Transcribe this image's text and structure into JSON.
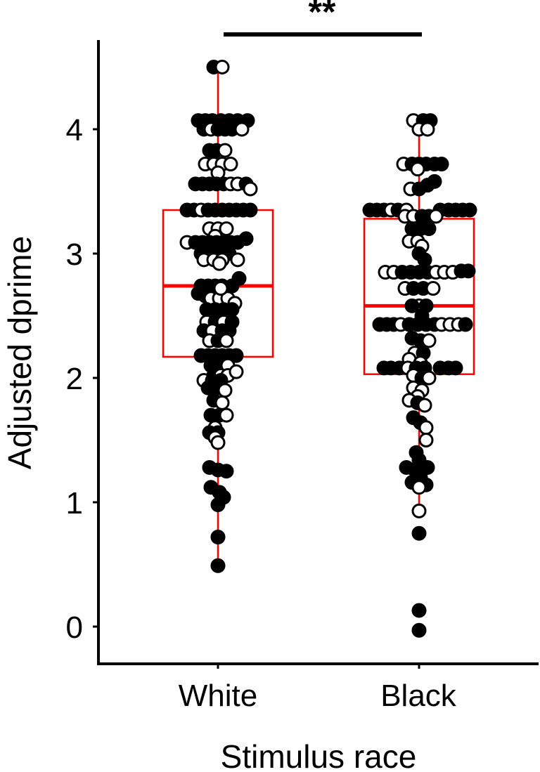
{
  "chart_data": {
    "type": "box",
    "subtype": "boxplot_with_dotplot",
    "title": "",
    "xlabel": "Stimulus race",
    "ylabel": "Adjusted dprime",
    "categories": [
      "White",
      "Black"
    ],
    "yticks": [
      0,
      1,
      2,
      3,
      4
    ],
    "ylim": [
      -0.3,
      4.75
    ],
    "grid": false,
    "legend": null,
    "box_color": "#ff0000",
    "point_fill_colors": {
      "filled": "#000000",
      "open": "#ffffff"
    },
    "significance": {
      "label": "**",
      "between": [
        "White",
        "Black"
      ]
    },
    "boxes": [
      {
        "category": "White",
        "q1": 2.17,
        "median": 2.74,
        "q3": 3.35,
        "whisker_low": 0.5,
        "whisker_high": 4.5
      },
      {
        "category": "Black",
        "q1": 2.03,
        "median": 2.58,
        "q3": 3.28,
        "whisker_low": 0.93,
        "whisker_high": 4.07,
        "outliers": [
          0.75,
          0.13,
          -0.03
        ]
      }
    ],
    "series": [
      {
        "name": "White",
        "points": [
          [
            4.5,
            -6,
            1
          ],
          [
            4.5,
            6,
            0
          ],
          [
            4.07,
            -28,
            1
          ],
          [
            4.07,
            -18,
            1
          ],
          [
            4.07,
            -8,
            1
          ],
          [
            4.07,
            4,
            1
          ],
          [
            4.07,
            16,
            1
          ],
          [
            4.07,
            28,
            1
          ],
          [
            4.07,
            42,
            1
          ],
          [
            4.0,
            -20,
            1
          ],
          [
            4.0,
            -10,
            0
          ],
          [
            4.0,
            0,
            1
          ],
          [
            4.0,
            10,
            1
          ],
          [
            4.0,
            20,
            1
          ],
          [
            4.0,
            34,
            0
          ],
          [
            3.83,
            -12,
            1
          ],
          [
            3.83,
            -2,
            1
          ],
          [
            3.83,
            10,
            0
          ],
          [
            3.72,
            -18,
            0
          ],
          [
            3.72,
            -6,
            0
          ],
          [
            3.72,
            6,
            0
          ],
          [
            3.72,
            18,
            0
          ],
          [
            3.65,
            0,
            0
          ],
          [
            3.56,
            -32,
            1
          ],
          [
            3.56,
            -22,
            1
          ],
          [
            3.56,
            -12,
            1
          ],
          [
            3.56,
            -2,
            1
          ],
          [
            3.56,
            8,
            1
          ],
          [
            3.56,
            18,
            0
          ],
          [
            3.56,
            28,
            0
          ],
          [
            3.56,
            40,
            1
          ],
          [
            3.52,
            46,
            0
          ],
          [
            3.35,
            -44,
            1
          ],
          [
            3.35,
            -34,
            1
          ],
          [
            3.35,
            -24,
            0
          ],
          [
            3.35,
            -14,
            1
          ],
          [
            3.35,
            -4,
            1
          ],
          [
            3.35,
            6,
            1
          ],
          [
            3.35,
            16,
            1
          ],
          [
            3.35,
            26,
            1
          ],
          [
            3.35,
            36,
            1
          ],
          [
            3.35,
            46,
            1
          ],
          [
            3.2,
            -12,
            0
          ],
          [
            3.2,
            0,
            0
          ],
          [
            3.2,
            12,
            0
          ],
          [
            3.14,
            -4,
            0
          ],
          [
            3.09,
            -44,
            0
          ],
          [
            3.09,
            -32,
            1
          ],
          [
            3.09,
            -22,
            1
          ],
          [
            3.09,
            -12,
            1
          ],
          [
            3.09,
            -2,
            1
          ],
          [
            3.09,
            8,
            1
          ],
          [
            3.09,
            18,
            1
          ],
          [
            3.09,
            28,
            1
          ],
          [
            3.12,
            40,
            1
          ],
          [
            3.0,
            -24,
            1
          ],
          [
            3.0,
            -14,
            1
          ],
          [
            3.0,
            -4,
            1
          ],
          [
            3.0,
            6,
            1
          ],
          [
            3.0,
            16,
            1
          ],
          [
            2.95,
            -20,
            0
          ],
          [
            2.95,
            -6,
            0
          ],
          [
            2.95,
            6,
            0
          ],
          [
            2.95,
            28,
            0
          ],
          [
            2.92,
            2,
            0
          ],
          [
            2.74,
            -24,
            1
          ],
          [
            2.74,
            -14,
            1
          ],
          [
            2.74,
            -4,
            1
          ],
          [
            2.74,
            6,
            1
          ],
          [
            2.74,
            20,
            1
          ],
          [
            2.8,
            30,
            1
          ],
          [
            2.68,
            -28,
            1
          ],
          [
            2.66,
            -18,
            1
          ],
          [
            2.64,
            -10,
            0
          ],
          [
            2.64,
            2,
            0
          ],
          [
            2.64,
            14,
            0
          ],
          [
            2.6,
            24,
            0
          ],
          [
            2.72,
            4,
            0
          ],
          [
            2.55,
            -16,
            1
          ],
          [
            2.55,
            -4,
            1
          ],
          [
            2.55,
            8,
            1
          ],
          [
            2.55,
            20,
            1
          ],
          [
            2.45,
            -16,
            0
          ],
          [
            2.45,
            -4,
            1
          ],
          [
            2.45,
            8,
            0
          ],
          [
            2.45,
            20,
            1
          ],
          [
            2.38,
            -20,
            1
          ],
          [
            2.38,
            -8,
            0
          ],
          [
            2.38,
            6,
            1
          ],
          [
            2.38,
            16,
            1
          ],
          [
            2.3,
            -12,
            0
          ],
          [
            2.3,
            0,
            1
          ],
          [
            2.3,
            12,
            0
          ],
          [
            2.18,
            -24,
            1
          ],
          [
            2.18,
            -14,
            1
          ],
          [
            2.18,
            -4,
            1
          ],
          [
            2.18,
            6,
            1
          ],
          [
            2.18,
            16,
            1
          ],
          [
            2.18,
            26,
            1
          ],
          [
            2.1,
            -10,
            1
          ],
          [
            2.1,
            2,
            1
          ],
          [
            2.1,
            14,
            0
          ],
          [
            2.02,
            -6,
            1
          ],
          [
            2.02,
            4,
            0
          ],
          [
            2.02,
            14,
            0
          ],
          [
            2.05,
            26,
            0
          ],
          [
            1.98,
            -20,
            0
          ],
          [
            1.98,
            -8,
            1
          ],
          [
            1.98,
            4,
            1
          ],
          [
            1.92,
            -14,
            1
          ],
          [
            1.92,
            -2,
            1
          ],
          [
            1.9,
            10,
            0
          ],
          [
            1.82,
            -6,
            1
          ],
          [
            1.8,
            6,
            0
          ],
          [
            1.7,
            -10,
            1
          ],
          [
            1.7,
            2,
            1
          ],
          [
            1.7,
            12,
            0
          ],
          [
            1.6,
            -4,
            0
          ],
          [
            1.56,
            -12,
            1
          ],
          [
            1.56,
            0,
            1
          ],
          [
            1.52,
            -4,
            0
          ],
          [
            1.48,
            0,
            0
          ],
          [
            1.28,
            -12,
            1
          ],
          [
            1.26,
            0,
            1
          ],
          [
            1.25,
            12,
            1
          ],
          [
            1.12,
            -10,
            1
          ],
          [
            1.08,
            2,
            1
          ],
          [
            1.04,
            8,
            1
          ],
          [
            0.98,
            0,
            1
          ],
          [
            0.72,
            0,
            1
          ],
          [
            0.49,
            0,
            1
          ]
        ]
      },
      {
        "name": "Black",
        "points": [
          [
            4.07,
            -8,
            0
          ],
          [
            4.07,
            6,
            1
          ],
          [
            4.07,
            16,
            1
          ],
          [
            4.0,
            0,
            0
          ],
          [
            4.0,
            12,
            0
          ],
          [
            3.72,
            -22,
            0
          ],
          [
            3.72,
            -10,
            1
          ],
          [
            3.72,
            0,
            1
          ],
          [
            3.72,
            10,
            1
          ],
          [
            3.72,
            22,
            1
          ],
          [
            3.72,
            32,
            1
          ],
          [
            3.68,
            -2,
            0
          ],
          [
            3.52,
            -12,
            0
          ],
          [
            3.52,
            0,
            1
          ],
          [
            3.55,
            12,
            1
          ],
          [
            3.58,
            22,
            1
          ],
          [
            3.35,
            -70,
            1
          ],
          [
            3.35,
            -60,
            1
          ],
          [
            3.35,
            -50,
            1
          ],
          [
            3.35,
            -40,
            0
          ],
          [
            3.35,
            -30,
            1
          ],
          [
            3.35,
            -18,
            0
          ],
          [
            3.35,
            30,
            1
          ],
          [
            3.35,
            42,
            1
          ],
          [
            3.35,
            52,
            1
          ],
          [
            3.35,
            62,
            1
          ],
          [
            3.35,
            72,
            1
          ],
          [
            3.3,
            -20,
            0
          ],
          [
            3.3,
            -8,
            0
          ],
          [
            3.3,
            4,
            1
          ],
          [
            3.3,
            14,
            1
          ],
          [
            3.3,
            24,
            0
          ],
          [
            3.2,
            -10,
            1
          ],
          [
            3.2,
            2,
            1
          ],
          [
            3.2,
            14,
            1
          ],
          [
            3.1,
            -14,
            0
          ],
          [
            3.1,
            -2,
            0
          ],
          [
            3.06,
            4,
            0
          ],
          [
            3.0,
            0,
            1
          ],
          [
            2.95,
            8,
            1
          ],
          [
            2.85,
            -48,
            0
          ],
          [
            2.85,
            -36,
            0
          ],
          [
            2.85,
            -24,
            1
          ],
          [
            2.85,
            -12,
            1
          ],
          [
            2.85,
            0,
            1
          ],
          [
            2.85,
            12,
            1
          ],
          [
            2.85,
            24,
            0
          ],
          [
            2.85,
            36,
            0
          ],
          [
            2.85,
            48,
            0
          ],
          [
            2.86,
            60,
            1
          ],
          [
            2.86,
            70,
            1
          ],
          [
            2.72,
            -20,
            0
          ],
          [
            2.72,
            -8,
            1
          ],
          [
            2.72,
            6,
            1
          ],
          [
            2.72,
            20,
            0
          ],
          [
            2.58,
            0,
            0
          ],
          [
            2.58,
            -10,
            1
          ],
          [
            2.58,
            10,
            1
          ],
          [
            2.5,
            4,
            1
          ],
          [
            2.43,
            -56,
            1
          ],
          [
            2.43,
            -46,
            1
          ],
          [
            2.43,
            -36,
            1
          ],
          [
            2.43,
            -26,
            0
          ],
          [
            2.43,
            -14,
            1
          ],
          [
            2.43,
            -2,
            1
          ],
          [
            2.43,
            10,
            1
          ],
          [
            2.43,
            22,
            1
          ],
          [
            2.43,
            32,
            0
          ],
          [
            2.43,
            44,
            0
          ],
          [
            2.43,
            56,
            0
          ],
          [
            2.43,
            66,
            1
          ],
          [
            2.32,
            -10,
            1
          ],
          [
            2.3,
            2,
            1
          ],
          [
            2.3,
            14,
            0
          ],
          [
            2.2,
            -6,
            0
          ],
          [
            2.2,
            6,
            1
          ],
          [
            2.15,
            -14,
            0
          ],
          [
            2.12,
            2,
            0
          ],
          [
            2.08,
            -50,
            1
          ],
          [
            2.08,
            -40,
            1
          ],
          [
            2.08,
            -28,
            1
          ],
          [
            2.08,
            -16,
            0
          ],
          [
            2.08,
            -4,
            1
          ],
          [
            2.08,
            8,
            1
          ],
          [
            2.08,
            30,
            1
          ],
          [
            2.08,
            42,
            1
          ],
          [
            2.08,
            52,
            1
          ],
          [
            2.02,
            -8,
            0
          ],
          [
            2.0,
            4,
            1
          ],
          [
            2.0,
            14,
            0
          ],
          [
            1.92,
            -8,
            0
          ],
          [
            1.9,
            4,
            0
          ],
          [
            1.85,
            -2,
            0
          ],
          [
            1.82,
            -14,
            0
          ],
          [
            1.8,
            -2,
            1
          ],
          [
            1.78,
            8,
            0
          ],
          [
            1.68,
            -8,
            1
          ],
          [
            1.64,
            2,
            1
          ],
          [
            1.6,
            10,
            0
          ],
          [
            1.5,
            10,
            0
          ],
          [
            1.4,
            -4,
            1
          ],
          [
            1.34,
            0,
            1
          ],
          [
            1.28,
            -18,
            1
          ],
          [
            1.28,
            12,
            1
          ],
          [
            1.26,
            -6,
            1
          ],
          [
            1.2,
            2,
            1
          ],
          [
            1.16,
            -10,
            1
          ],
          [
            1.14,
            10,
            1
          ],
          [
            1.12,
            0,
            0
          ],
          [
            0.93,
            0,
            0
          ],
          [
            0.75,
            0,
            1
          ],
          [
            0.13,
            0,
            1
          ],
          [
            -0.03,
            0,
            1
          ]
        ]
      }
    ]
  },
  "axes": {
    "y_title": "Adjusted dprime",
    "x_title": "Stimulus race",
    "y_tick_labels": [
      "0",
      "1",
      "2",
      "3",
      "4"
    ],
    "x_tick_labels": [
      "White",
      "Black"
    ]
  },
  "annotation": {
    "significance_label": "**"
  }
}
